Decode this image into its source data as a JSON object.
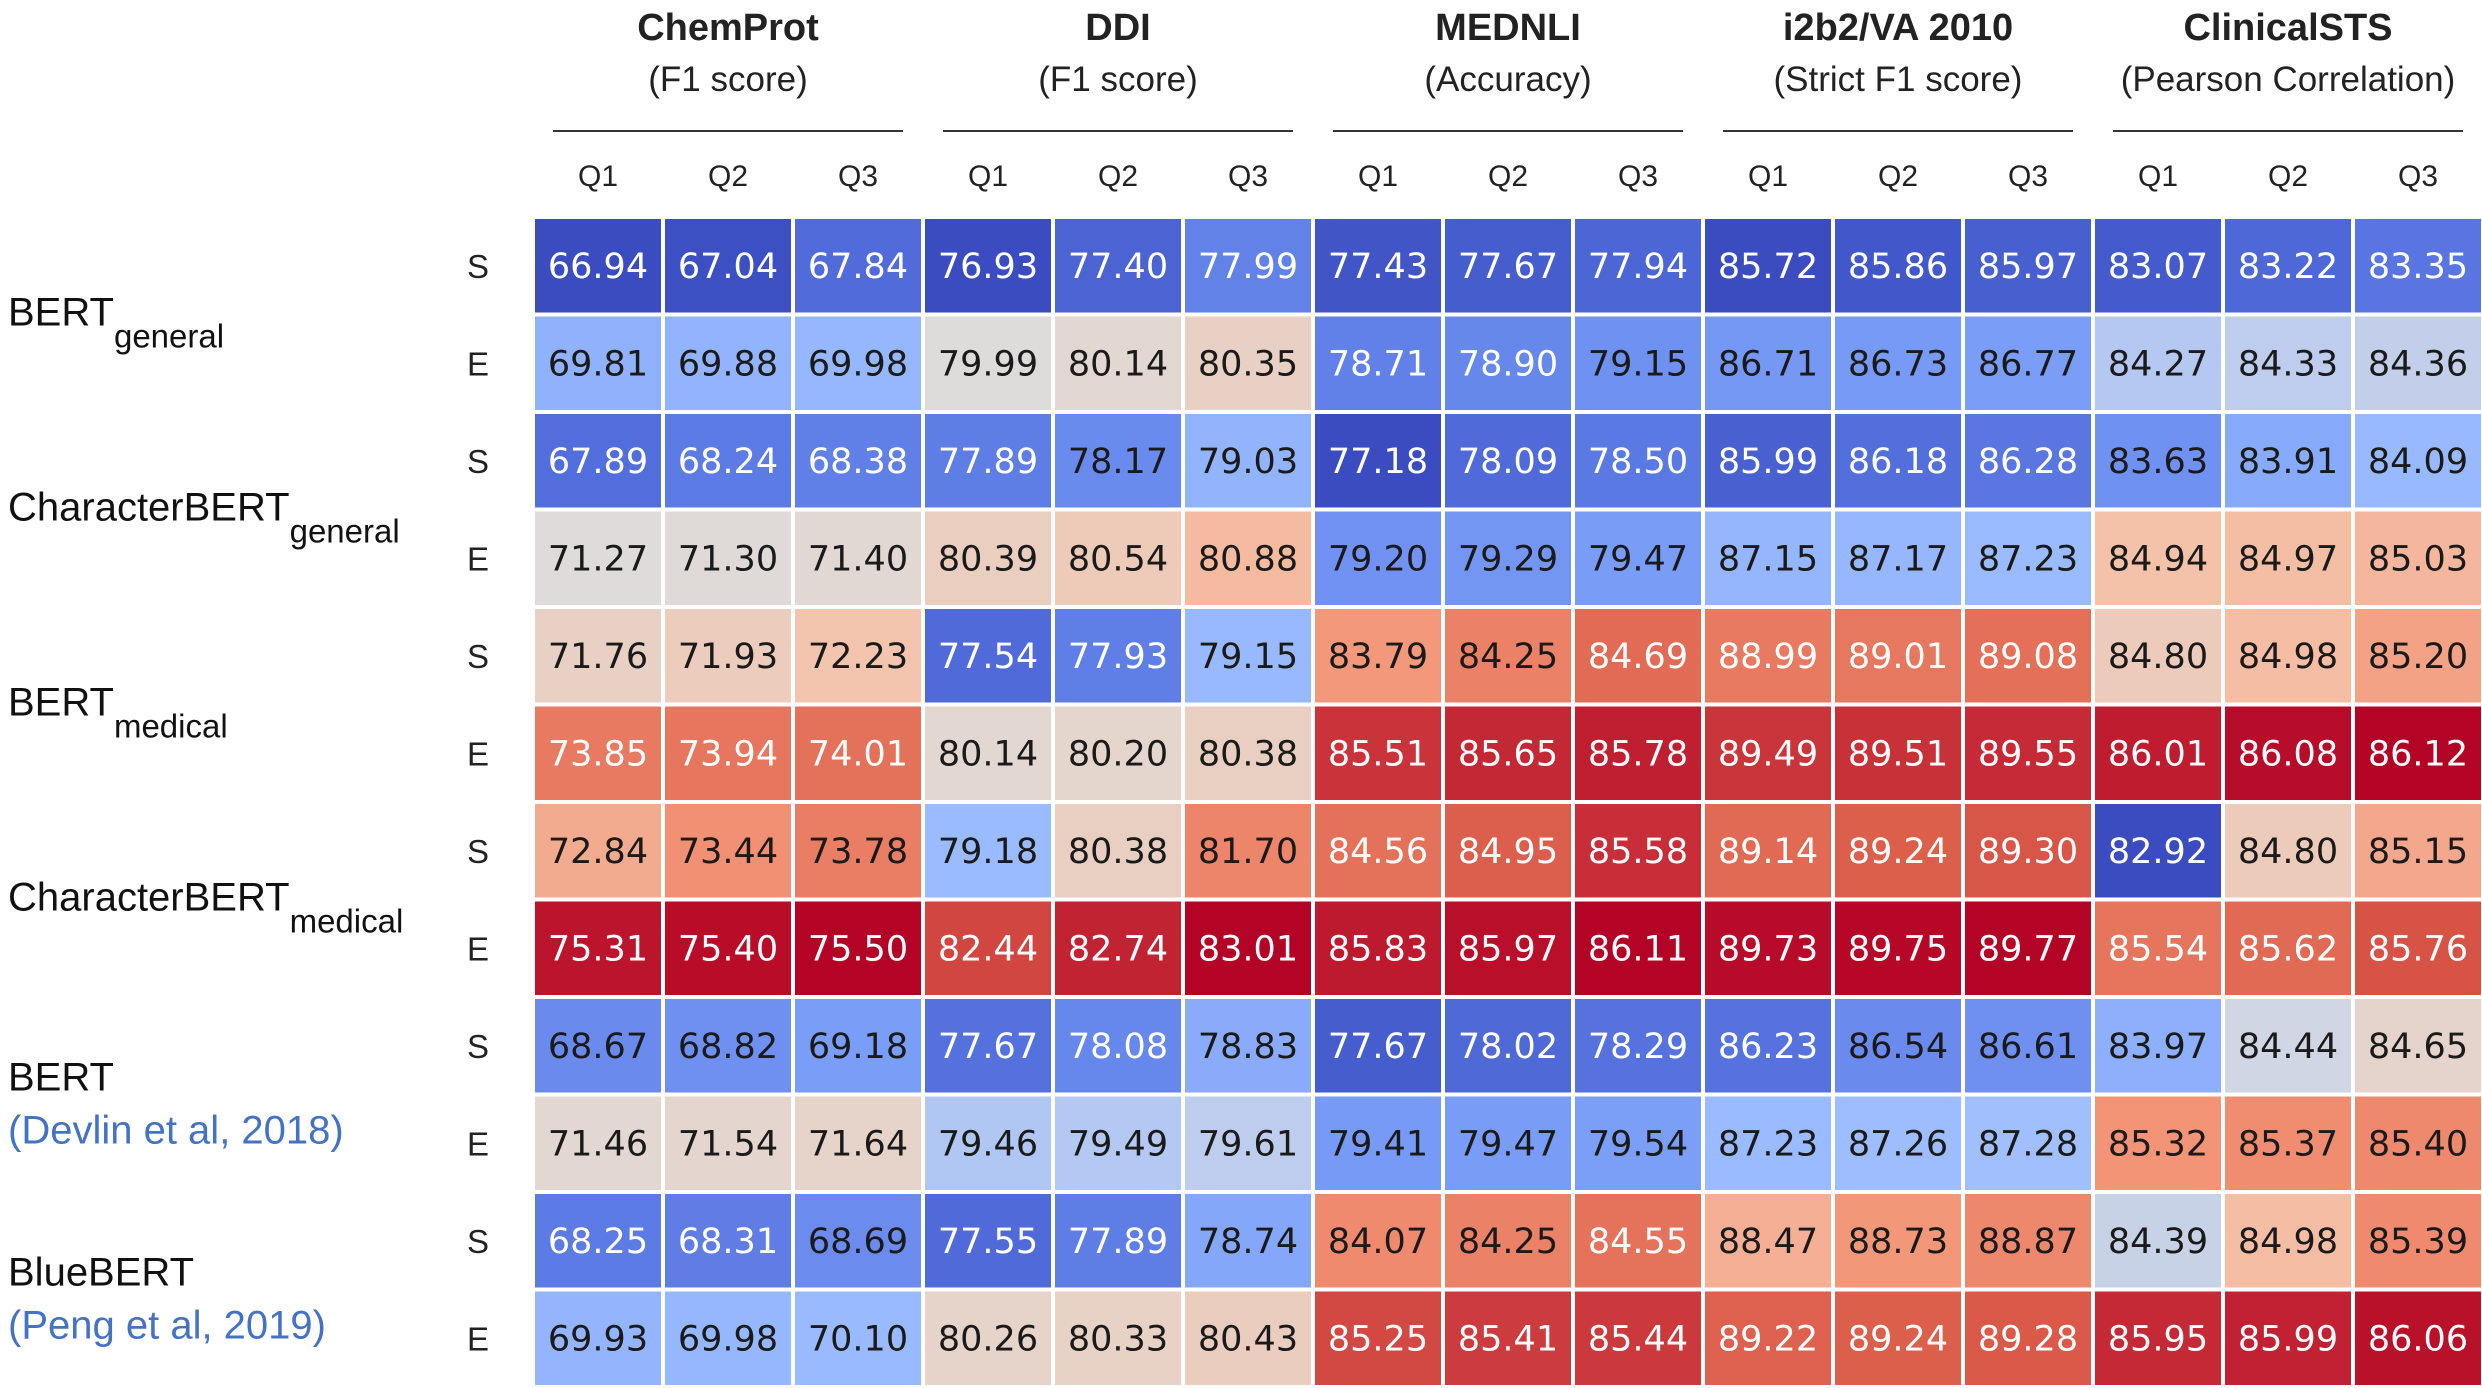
{
  "colors": {
    "cite": "#4472c4",
    "cell_border": "#ffffff",
    "dark_text": "#1a1a1a",
    "light_text": "#ffffff"
  },
  "chart_data": {
    "type": "heatmap",
    "title": "",
    "colormap": "coolwarm (blue = lower, red = higher; normalized per task)",
    "tasks": [
      {
        "name": "ChemProt",
        "metric": "(F1 score)"
      },
      {
        "name": "DDI",
        "metric": "(F1 score)"
      },
      {
        "name": "MEDNLI",
        "metric": "(Accuracy)"
      },
      {
        "name": "i2b2/VA 2010",
        "metric": "(Strict F1 score)"
      },
      {
        "name": "ClinicalSTS",
        "metric": "(Pearson Correlation)"
      }
    ],
    "quantiles": [
      "Q1",
      "Q2",
      "Q3"
    ],
    "row_tags": [
      "S",
      "E"
    ],
    "models": [
      {
        "name": "BERT",
        "sub": "general",
        "cite": ""
      },
      {
        "name": "CharacterBERT",
        "sub": "general",
        "cite": ""
      },
      {
        "name": "BERT",
        "sub": "medical",
        "cite": ""
      },
      {
        "name": "CharacterBERT",
        "sub": "medical",
        "cite": ""
      },
      {
        "name": "BERT",
        "sub": "",
        "cite": "(Devlin et al, 2018)"
      },
      {
        "name": "BlueBERT",
        "sub": "",
        "cite": "(Peng et al, 2019)"
      }
    ],
    "values": [
      [
        "66.94",
        "67.04",
        "67.84",
        "76.93",
        "77.40",
        "77.99",
        "77.43",
        "77.67",
        "77.94",
        "85.72",
        "85.86",
        "85.97",
        "83.07",
        "83.22",
        "83.35"
      ],
      [
        "69.81",
        "69.88",
        "69.98",
        "79.99",
        "80.14",
        "80.35",
        "78.71",
        "78.90",
        "79.15",
        "86.71",
        "86.73",
        "86.77",
        "84.27",
        "84.33",
        "84.36"
      ],
      [
        "67.89",
        "68.24",
        "68.38",
        "77.89",
        "78.17",
        "79.03",
        "77.18",
        "78.09",
        "78.50",
        "85.99",
        "86.18",
        "86.28",
        "83.63",
        "83.91",
        "84.09"
      ],
      [
        "71.27",
        "71.30",
        "71.40",
        "80.39",
        "80.54",
        "80.88",
        "79.20",
        "79.29",
        "79.47",
        "87.15",
        "87.17",
        "87.23",
        "84.94",
        "84.97",
        "85.03"
      ],
      [
        "71.76",
        "71.93",
        "72.23",
        "77.54",
        "77.93",
        "79.15",
        "83.79",
        "84.25",
        "84.69",
        "88.99",
        "89.01",
        "89.08",
        "84.80",
        "84.98",
        "85.20"
      ],
      [
        "73.85",
        "73.94",
        "74.01",
        "80.14",
        "80.20",
        "80.38",
        "85.51",
        "85.65",
        "85.78",
        "89.49",
        "89.51",
        "89.55",
        "86.01",
        "86.08",
        "86.12"
      ],
      [
        "72.84",
        "73.44",
        "73.78",
        "79.18",
        "80.38",
        "81.70",
        "84.56",
        "84.95",
        "85.58",
        "89.14",
        "89.24",
        "89.30",
        "82.92",
        "84.80",
        "85.15"
      ],
      [
        "75.31",
        "75.40",
        "75.50",
        "82.44",
        "82.74",
        "83.01",
        "85.83",
        "85.97",
        "86.11",
        "89.73",
        "89.75",
        "89.77",
        "85.54",
        "85.62",
        "85.76"
      ],
      [
        "68.67",
        "68.82",
        "69.18",
        "77.67",
        "78.08",
        "78.83",
        "77.67",
        "78.02",
        "78.29",
        "86.23",
        "86.54",
        "86.61",
        "83.97",
        "84.44",
        "84.65"
      ],
      [
        "71.46",
        "71.54",
        "71.64",
        "79.46",
        "79.49",
        "79.61",
        "79.41",
        "79.47",
        "79.54",
        "87.23",
        "87.26",
        "87.28",
        "85.32",
        "85.37",
        "85.40"
      ],
      [
        "68.25",
        "68.31",
        "68.69",
        "77.55",
        "77.89",
        "78.74",
        "84.07",
        "84.25",
        "84.55",
        "88.47",
        "88.73",
        "88.87",
        "84.39",
        "84.98",
        "85.39"
      ],
      [
        "69.93",
        "69.98",
        "70.10",
        "80.26",
        "80.33",
        "80.43",
        "85.25",
        "85.41",
        "85.44",
        "89.22",
        "89.24",
        "89.28",
        "85.95",
        "85.99",
        "86.06"
      ]
    ]
  }
}
